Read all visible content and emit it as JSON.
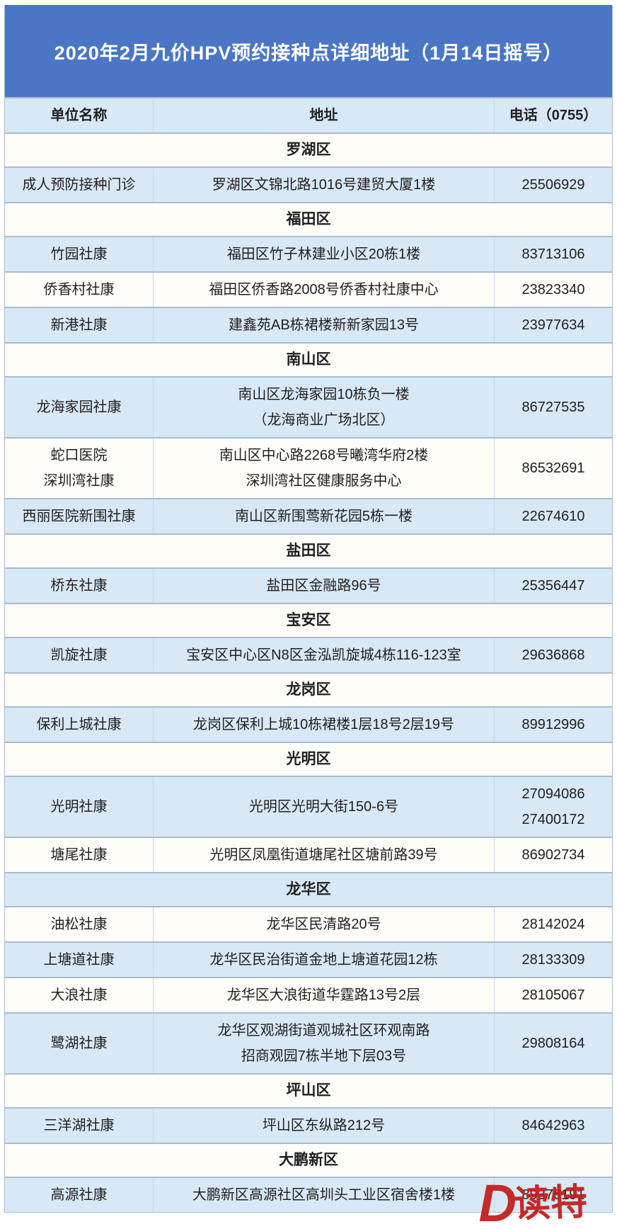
{
  "title": "2020年2月九价HPV预约接种点详细地址（1月14日摇号）",
  "columns": [
    "单位名称",
    "地址",
    "电话（0755）"
  ],
  "sections": [
    {
      "district": "罗湖区",
      "rows": [
        {
          "name": [
            "成人预防接种门诊"
          ],
          "address": [
            "罗湖区文锦北路1016号建贸大厦1楼"
          ],
          "phone": [
            "25506929"
          ]
        }
      ]
    },
    {
      "district": "福田区",
      "rows": [
        {
          "name": [
            "竹园社康"
          ],
          "address": [
            "福田区竹子林建业小区20栋1楼"
          ],
          "phone": [
            "83713106"
          ]
        },
        {
          "name": [
            "侨香村社康"
          ],
          "address": [
            "福田区侨香路2008号侨香村社康中心"
          ],
          "phone": [
            "23823340"
          ]
        },
        {
          "name": [
            "新港社康"
          ],
          "address": [
            "建鑫苑AB栋裙楼新新家园13号"
          ],
          "phone": [
            "23977634"
          ]
        }
      ]
    },
    {
      "district": "南山区",
      "rows": [
        {
          "name": [
            "龙海家园社康"
          ],
          "address": [
            "南山区龙海家园10栋负一楼",
            "（龙海商业广场北区）"
          ],
          "phone": [
            "86727535"
          ]
        },
        {
          "name": [
            "蛇口医院",
            "深圳湾社康"
          ],
          "address": [
            "南山区中心路2268号曦湾华府2楼",
            "深圳湾社区健康服务中心"
          ],
          "phone": [
            "86532691"
          ]
        },
        {
          "name": [
            "西丽医院新围社康"
          ],
          "address": [
            "南山区新围莺新花园5栋一楼"
          ],
          "phone": [
            "22674610"
          ]
        }
      ]
    },
    {
      "district": "盐田区",
      "rows": [
        {
          "name": [
            "桥东社康"
          ],
          "address": [
            "盐田区金融路96号"
          ],
          "phone": [
            "25356447"
          ]
        }
      ]
    },
    {
      "district": "宝安区",
      "rows": [
        {
          "name": [
            "凯旋社康"
          ],
          "address": [
            "宝安区中心区N8区金泓凯旋城4栋116-123室"
          ],
          "phone": [
            "29636868"
          ]
        }
      ]
    },
    {
      "district": "龙岗区",
      "rows": [
        {
          "name": [
            "保利上城社康"
          ],
          "address": [
            "龙岗区保利上城10栋裙楼1层18号2层19号"
          ],
          "phone": [
            "89912996"
          ]
        }
      ]
    },
    {
      "district": "光明区",
      "rows": [
        {
          "name": [
            "光明社康"
          ],
          "address": [
            "光明区光明大街150-6号"
          ],
          "phone": [
            "27094086",
            "27400172"
          ]
        },
        {
          "name": [
            "塘尾社康"
          ],
          "address": [
            "光明区凤凰街道塘尾社区塘前路39号"
          ],
          "phone": [
            "86902734"
          ]
        }
      ]
    },
    {
      "district": "龙华区",
      "rows": [
        {
          "name": [
            "油松社康"
          ],
          "address": [
            "龙华区民清路20号"
          ],
          "phone": [
            "28142024"
          ]
        },
        {
          "name": [
            "上塘道社康"
          ],
          "address": [
            "龙华区民治街道金地上塘道花园12栋"
          ],
          "phone": [
            "28133309"
          ]
        },
        {
          "name": [
            "大浪社康"
          ],
          "address": [
            "龙华区大浪街道华霆路13号2层"
          ],
          "phone": [
            "28105067"
          ]
        },
        {
          "name": [
            "鹭湖社康"
          ],
          "address": [
            "龙华区观湖街道观城社区环观南路",
            "招商观园7栋半地下层03号"
          ],
          "phone": [
            "29808164"
          ]
        }
      ]
    },
    {
      "district": "坪山区",
      "rows": [
        {
          "name": [
            "三洋湖社康"
          ],
          "address": [
            "坪山区东纵路212号"
          ],
          "phone": [
            "84642963"
          ]
        }
      ]
    },
    {
      "district": "大鹏新区",
      "rows": [
        {
          "name": [
            "高源社康"
          ],
          "address": [
            "大鹏新区高源社区高圳头工业区宿舍楼1楼"
          ],
          "phone": [
            "89376191"
          ]
        }
      ]
    }
  ],
  "watermark": {
    "brand_letter": "D",
    "brand_name": "读特"
  },
  "colors": {
    "banner_blue": "#4a76c5",
    "row_blue": "#d9e8f6",
    "row_white": "#fffdf8",
    "border": "#a9bccf",
    "logo_red": "#c2201d",
    "title_text": "#ffffff",
    "body_text": "#1f1f1f"
  }
}
